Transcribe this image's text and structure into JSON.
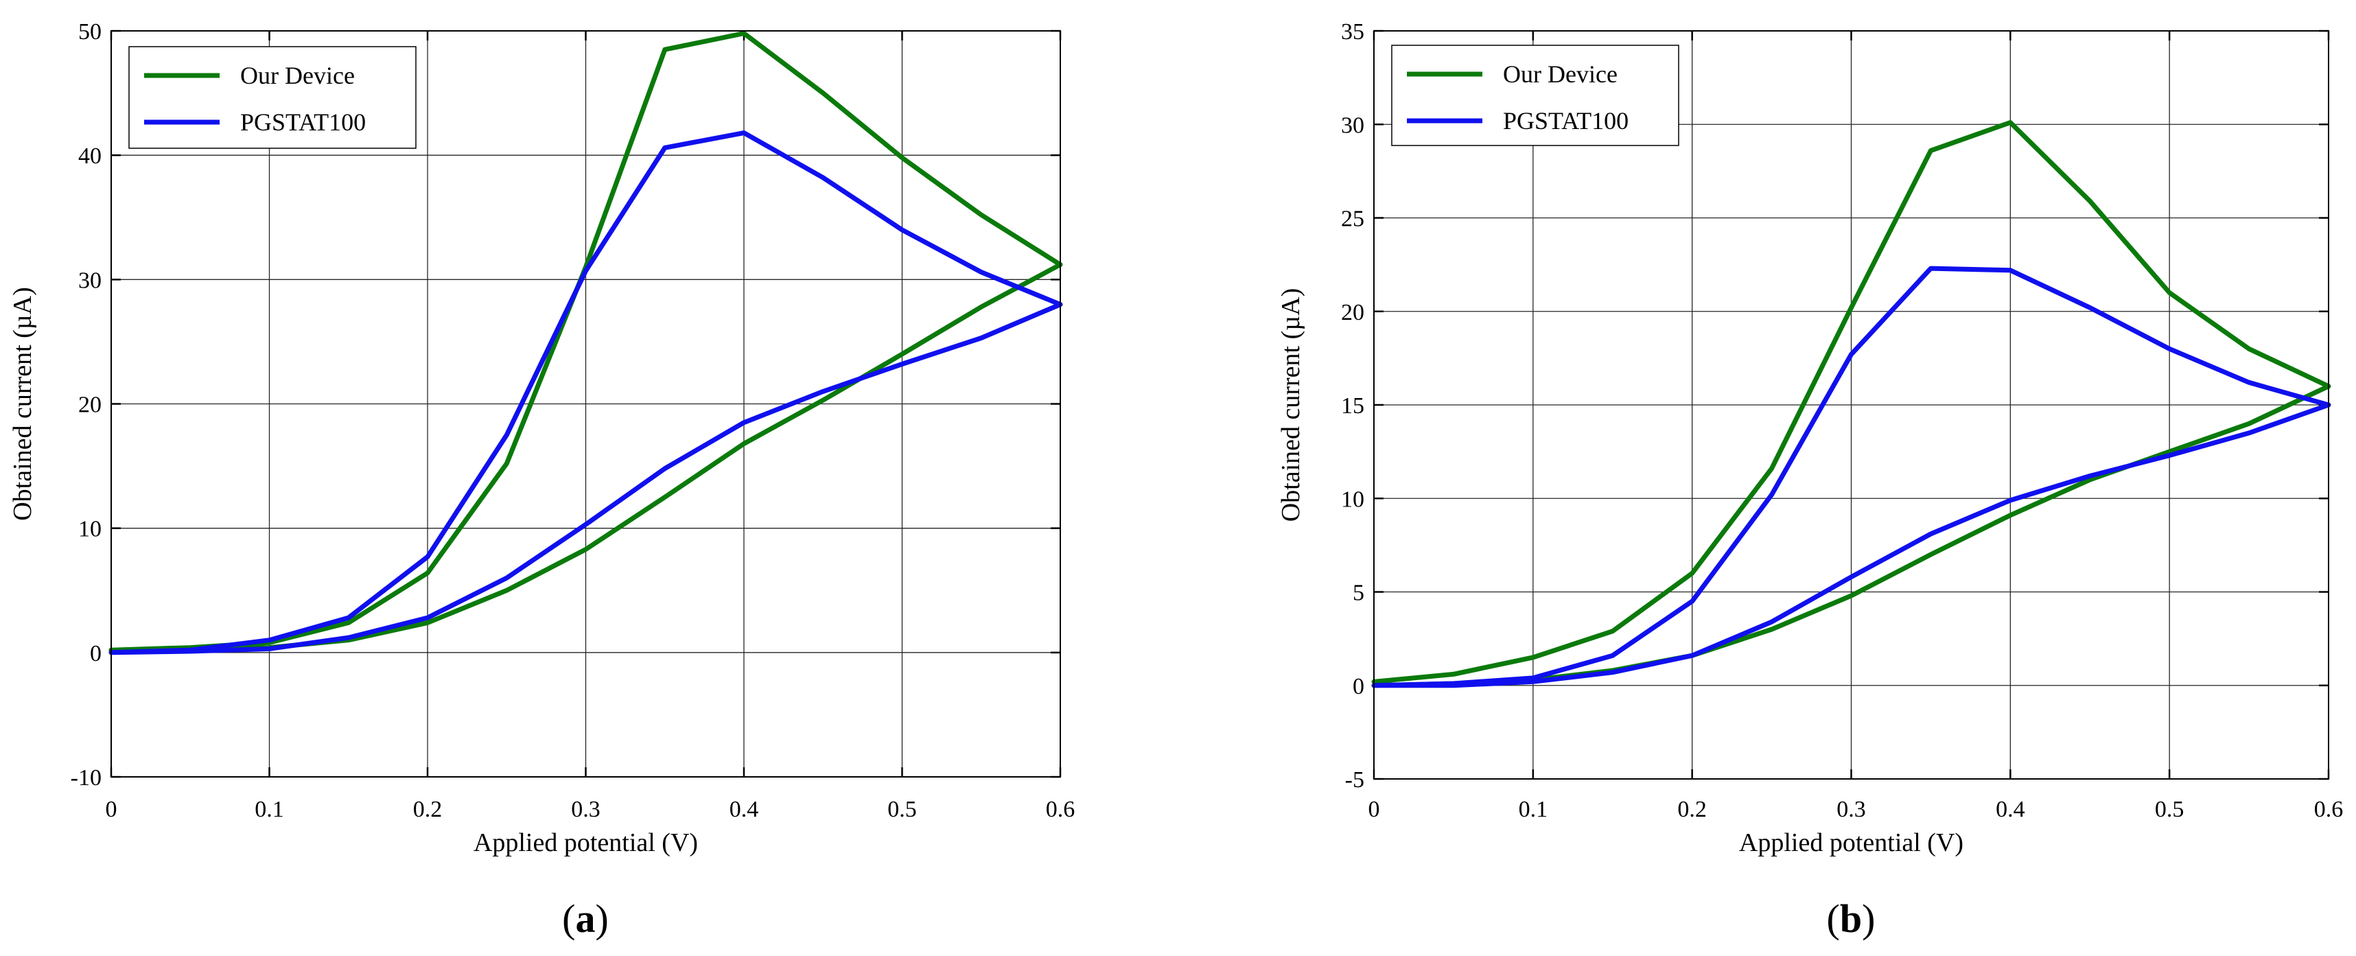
{
  "colors": {
    "our_device": "#0b7a0b",
    "pgstat": "#1010ee"
  },
  "chart_data": [
    {
      "type": "line",
      "panel_label": "a",
      "xlabel": "Applied potential (V)",
      "ylabel": "Obtained current (µA)",
      "xlim": [
        0,
        0.6
      ],
      "ylim": [
        -10,
        50
      ],
      "xticks": [
        0,
        0.1,
        0.2,
        0.3,
        0.4,
        0.5,
        0.6
      ],
      "xtick_labels": [
        "0",
        "0.1",
        "0.2",
        "0.3",
        "0.4",
        "0.5",
        "0.6"
      ],
      "yticks": [
        -10,
        0,
        10,
        20,
        30,
        40,
        50
      ],
      "ytick_labels": [
        "-10",
        "0",
        "10",
        "20",
        "30",
        "40",
        "50"
      ],
      "grid": true,
      "legend": "top-left",
      "series": [
        {
          "name": "Our Device",
          "color": "#0b7a0b",
          "x": [
            0,
            0.05,
            0.1,
            0.15,
            0.2,
            0.25,
            0.3,
            0.35,
            0.4,
            0.45,
            0.5,
            0.55,
            0.6,
            0.55,
            0.5,
            0.45,
            0.4,
            0.35,
            0.3,
            0.25,
            0.2,
            0.15,
            0.1,
            0.05,
            0
          ],
          "y": [
            0.2,
            0.4,
            0.8,
            2.4,
            6.4,
            15.2,
            31.0,
            48.5,
            49.8,
            45.0,
            39.8,
            35.2,
            31.2,
            27.8,
            24.0,
            20.3,
            16.8,
            12.5,
            8.3,
            5.0,
            2.4,
            1.0,
            0.4,
            0.2,
            0.1
          ]
        },
        {
          "name": "PGSTAT100",
          "color": "#1010ee",
          "x": [
            0,
            0.05,
            0.1,
            0.15,
            0.2,
            0.25,
            0.3,
            0.35,
            0.4,
            0.45,
            0.5,
            0.55,
            0.6,
            0.55,
            0.5,
            0.45,
            0.4,
            0.35,
            0.3,
            0.25,
            0.2,
            0.15,
            0.1,
            0.05,
            0
          ],
          "y": [
            0.0,
            0.2,
            1.0,
            2.8,
            7.7,
            17.5,
            30.7,
            40.6,
            41.8,
            38.2,
            34.0,
            30.6,
            28.0,
            25.3,
            23.2,
            21.0,
            18.5,
            14.8,
            10.3,
            6.0,
            2.8,
            1.2,
            0.3,
            0.1,
            0.0
          ]
        }
      ]
    },
    {
      "type": "line",
      "panel_label": "b",
      "xlabel": "Applied potential (V)",
      "ylabel": "Obtained current (µA)",
      "xlim": [
        0,
        0.6
      ],
      "ylim": [
        -5,
        35
      ],
      "xticks": [
        0,
        0.1,
        0.2,
        0.3,
        0.4,
        0.5,
        0.6
      ],
      "xtick_labels": [
        "0",
        "0.1",
        "0.2",
        "0.3",
        "0.4",
        "0.5",
        "0.6"
      ],
      "yticks": [
        -5,
        0,
        5,
        10,
        15,
        20,
        25,
        30,
        35
      ],
      "ytick_labels": [
        "-5",
        "0",
        "5",
        "10",
        "15",
        "20",
        "25",
        "30",
        "35"
      ],
      "grid": true,
      "legend": "top-left",
      "series": [
        {
          "name": "Our Device",
          "color": "#0b7a0b",
          "x": [
            0,
            0.05,
            0.1,
            0.15,
            0.2,
            0.25,
            0.3,
            0.35,
            0.4,
            0.45,
            0.5,
            0.55,
            0.6,
            0.55,
            0.5,
            0.45,
            0.4,
            0.35,
            0.3,
            0.25,
            0.2,
            0.15,
            0.1,
            0.05,
            0
          ],
          "y": [
            0.2,
            0.6,
            1.5,
            2.9,
            6.0,
            11.6,
            20.2,
            28.6,
            30.1,
            25.9,
            21.0,
            18.0,
            16.0,
            14.0,
            12.5,
            11.0,
            9.1,
            7.0,
            4.8,
            3.0,
            1.6,
            0.8,
            0.3,
            0.1,
            0.0
          ]
        },
        {
          "name": "PGSTAT100",
          "color": "#1010ee",
          "x": [
            0,
            0.05,
            0.1,
            0.15,
            0.2,
            0.25,
            0.3,
            0.35,
            0.4,
            0.45,
            0.5,
            0.55,
            0.6,
            0.55,
            0.5,
            0.45,
            0.4,
            0.35,
            0.3,
            0.25,
            0.2,
            0.15,
            0.1,
            0.05,
            0
          ],
          "y": [
            0.0,
            0.1,
            0.4,
            1.6,
            4.5,
            10.2,
            17.7,
            22.3,
            22.2,
            20.2,
            18.0,
            16.2,
            15.0,
            13.5,
            12.3,
            11.2,
            9.9,
            8.1,
            5.8,
            3.4,
            1.6,
            0.7,
            0.2,
            0.0,
            0.0
          ]
        }
      ]
    }
  ]
}
